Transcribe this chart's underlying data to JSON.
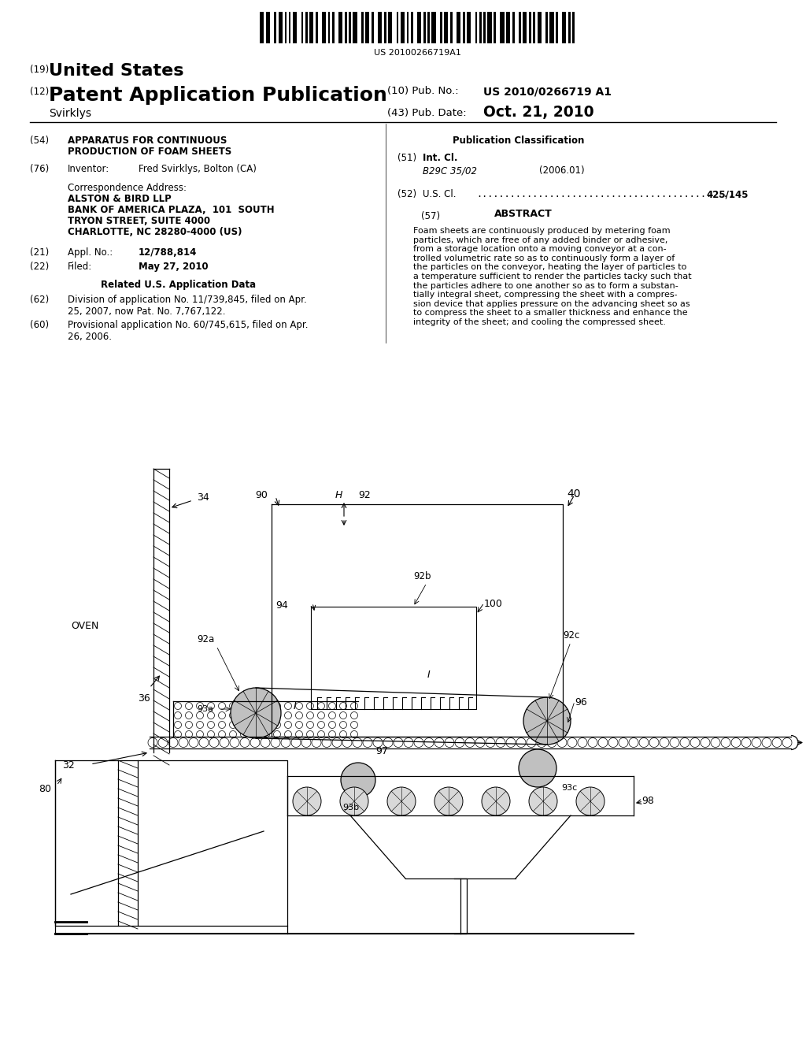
{
  "bg_color": "#ffffff",
  "barcode_text": "US 20100266719A1",
  "title_us": "United States",
  "title_pap": "Patent Application Publication",
  "pub_no_label": "(10) Pub. No.:",
  "pub_no_val": "US 2010/0266719 A1",
  "pub_date_label": "(43) Pub. Date:",
  "pub_date_val": "Oct. 21, 2010",
  "inventor_name": "Svirklys",
  "field54_title1": "APPARATUS FOR CONTINUOUS",
  "field54_title2": "PRODUCTION OF FOAM SHEETS",
  "field76_val": "Fred Svirklys, Bolton (CA)",
  "corr_addr_label": "Correspondence Address:",
  "corr_addr1": "ALSTON & BIRD LLP",
  "corr_addr2": "BANK OF AMERICA PLAZA,  101  SOUTH",
  "corr_addr3": "TRYON STREET, SUITE 4000",
  "corr_addr4": "CHARLOTTE, NC 28280-4000 (US)",
  "field21_val": "12/788,814",
  "field22_val": "May 27, 2010",
  "related_title": "Related U.S. Application Data",
  "field62_text": "Division of application No. 11/739,845, filed on Apr.\n25, 2007, now Pat. No. 7,767,122.",
  "field60_text": "Provisional application No. 60/745,615, filed on Apr.\n26, 2006.",
  "pub_class_title": "Publication Classification",
  "field51_class": "B29C 35/02",
  "field51_year": "(2006.01)",
  "field52_val": "425/145",
  "field57_title": "ABSTRACT",
  "abstract_text": "Foam sheets are continuously produced by metering foam\nparticles, which are free of any added binder or adhesive,\nfrom a storage location onto a moving conveyor at a con-\ntrolled volumetric rate so as to continuously form a layer of\nthe particles on the conveyor, heating the layer of particles to\na temperature sufficient to render the particles tacky such that\nthe particles adhere to one another so as to form a substan-\ntially integral sheet, compressing the sheet with a compres-\nsion device that applies pressure on the advancing sheet so as\nto compress the sheet to a smaller thickness and enhance the\nintegrity of the sheet; and cooling the compressed sheet."
}
